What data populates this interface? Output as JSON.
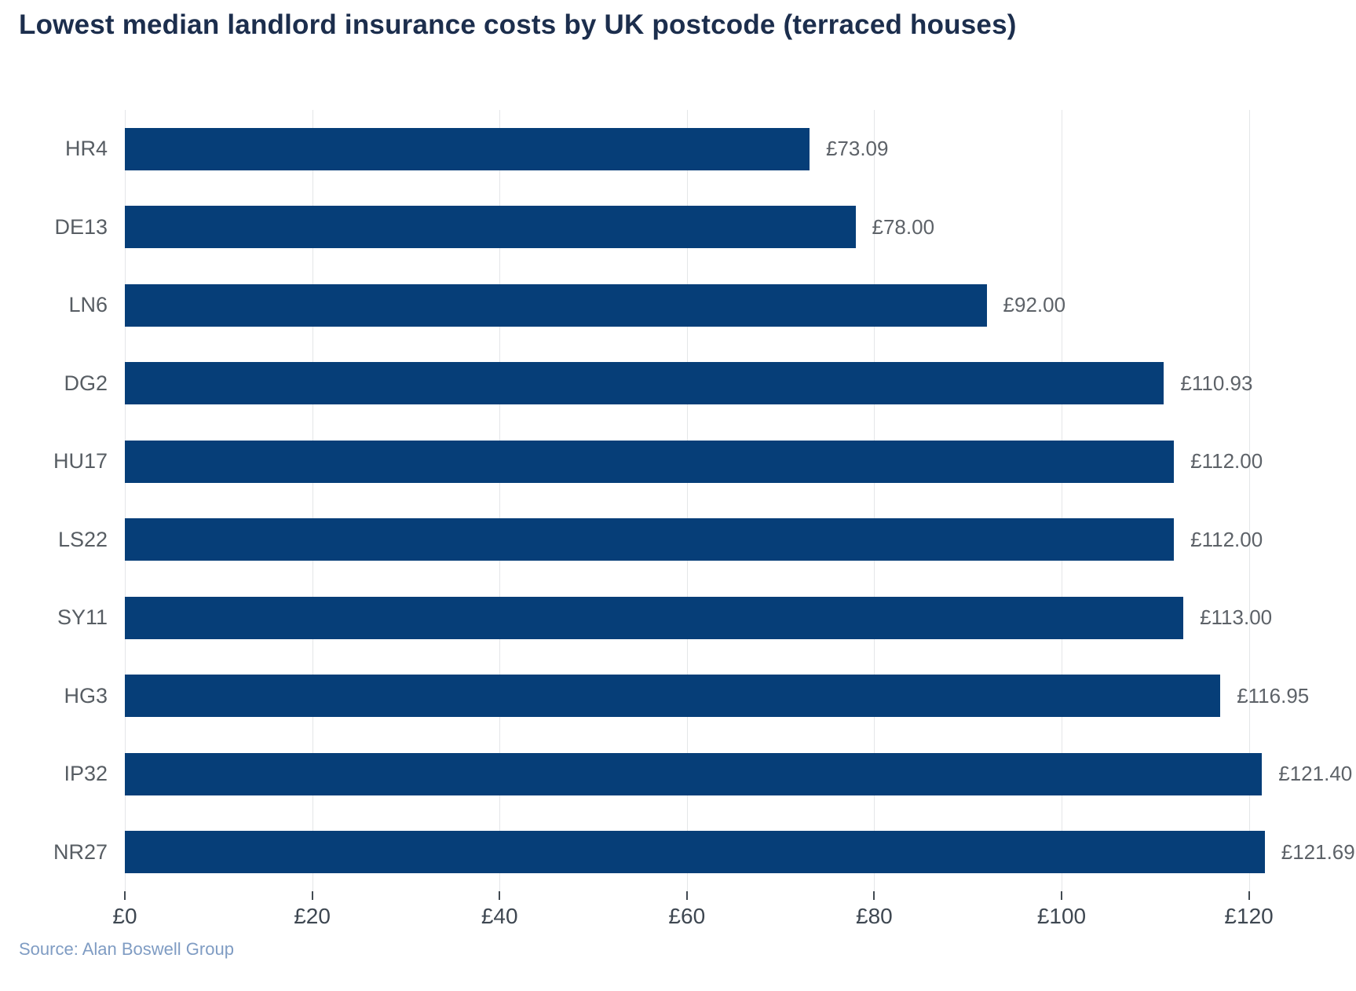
{
  "title": "Lowest median landlord insurance costs by UK postcode (terraced houses)",
  "source": "Source: Alan Boswell Group",
  "colors": {
    "bar": "#063e78",
    "title_text": "#1c2e4d",
    "category_label": "#575d63",
    "value_label": "#5d6268",
    "tick_label": "#3e4751",
    "gridline": "#e4e6e8",
    "source_text": "#7f9cc3",
    "background": "#ffffff"
  },
  "chart_data": {
    "type": "bar",
    "orientation": "horizontal",
    "title": "Lowest median landlord insurance costs by UK postcode (terraced houses)",
    "categories": [
      "HR4",
      "DE13",
      "LN6",
      "DG2",
      "HU17",
      "LS22",
      "SY11",
      "HG3",
      "IP32",
      "NR27"
    ],
    "values": [
      73.09,
      78.0,
      92.0,
      110.93,
      112.0,
      112.0,
      113.0,
      116.95,
      121.4,
      121.69
    ],
    "value_labels": [
      "£73.09",
      "£78.00",
      "£92.00",
      "£110.93",
      "£112.00",
      "£112.00",
      "£113.00",
      "£116.95",
      "£121.40",
      "£121.69"
    ],
    "xlabel": "",
    "ylabel": "",
    "xlim": [
      0,
      125.4
    ],
    "xtick_values": [
      0,
      20,
      40,
      60,
      80,
      100,
      120
    ],
    "xtick_labels": [
      "£0",
      "£20",
      "£40",
      "£60",
      "£80",
      "£100",
      "£120"
    ],
    "grid": "vertical-only",
    "legend": "none",
    "currency": "GBP"
  }
}
